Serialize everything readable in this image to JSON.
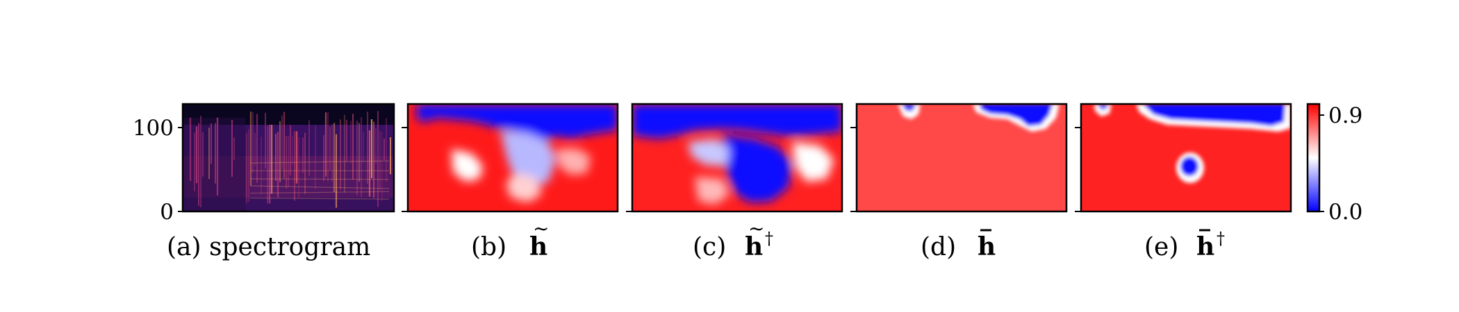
{
  "chart_data": {
    "type": "heatmap",
    "panels": [
      {
        "id": "a",
        "caption_prefix": "(a)",
        "caption_text": "spectrogram",
        "colormap": "magma"
      },
      {
        "id": "b",
        "caption_prefix": "(b)",
        "caption_symbol": "h",
        "caption_accent": "tilde",
        "caption_sup": ""
      },
      {
        "id": "c",
        "caption_prefix": "(c)",
        "caption_symbol": "h",
        "caption_accent": "tilde",
        "caption_sup": "†"
      },
      {
        "id": "d",
        "caption_prefix": "(d)",
        "caption_symbol": "h",
        "caption_accent": "bar",
        "caption_sup": ""
      },
      {
        "id": "e",
        "caption_prefix": "(e)",
        "caption_symbol": "h",
        "caption_accent": "bar",
        "caption_sup": "†"
      }
    ],
    "yaxis": {
      "ticks": [
        "0",
        "100"
      ],
      "tick_values": [
        0,
        100
      ],
      "ylim": [
        0,
        128
      ]
    },
    "colorbar": {
      "colormap": "bwr",
      "ticks": [
        "0.0",
        "0.9"
      ],
      "tick_values": [
        0.0,
        0.9
      ],
      "range": [
        0.0,
        1.0
      ]
    },
    "colors": {
      "low": "#0000ff",
      "mid": "#ffffff",
      "high": "#ff0000"
    }
  }
}
